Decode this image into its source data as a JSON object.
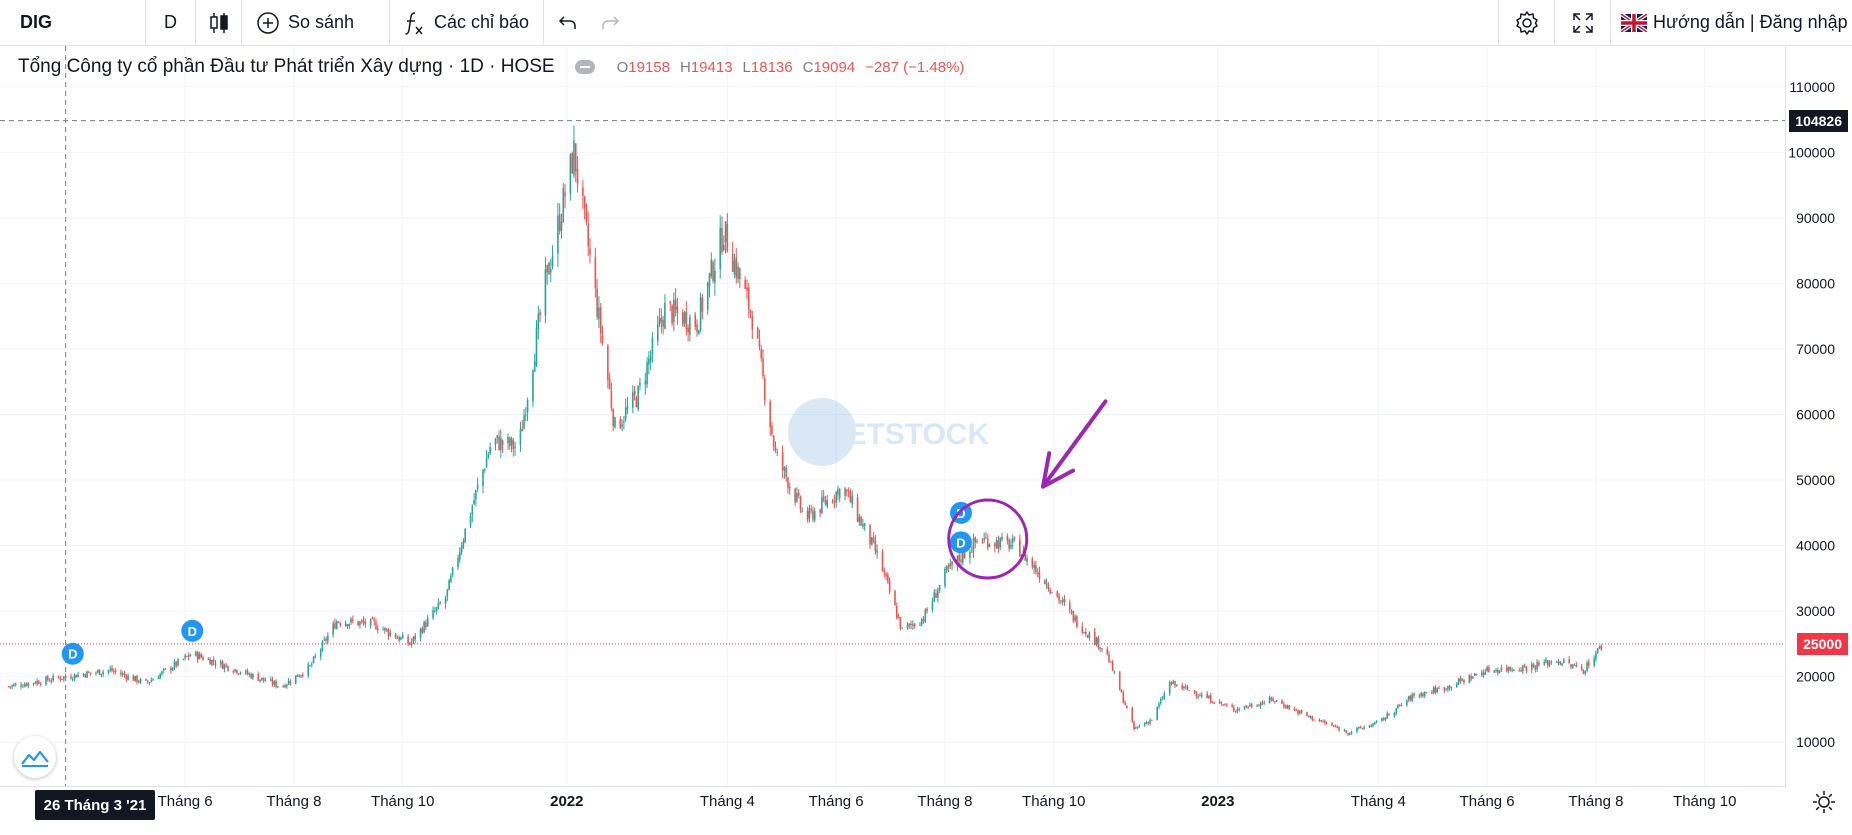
{
  "toolbar": {
    "symbol": "DIG",
    "interval": "D",
    "compare_label": "So sánh",
    "indicators_label": "Các chỉ báo",
    "guide_label": "Hướng dẫn | Đăng nhập"
  },
  "legend": {
    "title": "Tổng Công ty cổ phần Đầu tư Phát triển Xây dựng · 1D · HOSE",
    "o_label": "O",
    "o_value": "19158",
    "h_label": "H",
    "h_value": "19413",
    "l_label": "L",
    "l_value": "18136",
    "c_label": "C",
    "c_value": "19094",
    "change": "−287 (−1.48%)"
  },
  "watermark": {
    "text": "IETSTOCK"
  },
  "crosshair": {
    "price_label": "104826",
    "date_label": "26 Tháng 3 '21"
  },
  "last_price": {
    "label": "25000",
    "value": 25000,
    "color": "#f23645"
  },
  "colors": {
    "up": "#26a69a",
    "down": "#ef5350",
    "annotation": "#9c27b0",
    "dividend_badge": "#2196f3"
  },
  "chart_data": {
    "type": "candlestick",
    "y_axis": {
      "min": 5000,
      "max": 115000,
      "ticks": [
        10000,
        20000,
        30000,
        40000,
        50000,
        60000,
        70000,
        80000,
        90000,
        100000,
        110000
      ]
    },
    "x_axis": {
      "ticks": [
        {
          "label": "Tháng 6",
          "date": "2021-06"
        },
        {
          "label": "Tháng 8",
          "date": "2021-08"
        },
        {
          "label": "Tháng 10",
          "date": "2021-10"
        },
        {
          "label": "2022",
          "date": "2022-01",
          "bold": true
        },
        {
          "label": "Tháng 4",
          "date": "2022-04"
        },
        {
          "label": "Tháng 6",
          "date": "2022-06"
        },
        {
          "label": "Tháng 8",
          "date": "2022-08"
        },
        {
          "label": "Tháng 10",
          "date": "2022-10"
        },
        {
          "label": "2023",
          "date": "2023-01",
          "bold": true
        },
        {
          "label": "Tháng 4",
          "date": "2023-04"
        },
        {
          "label": "Tháng 6",
          "date": "2023-06"
        },
        {
          "label": "Tháng 8",
          "date": "2023-08"
        },
        {
          "label": "Tháng 10",
          "date": "2023-10"
        }
      ]
    },
    "price_path": [
      {
        "date": "2021-02-22",
        "close": 18500
      },
      {
        "date": "2021-03-26",
        "close": 20000
      },
      {
        "date": "2021-04-20",
        "close": 21000
      },
      {
        "date": "2021-05-10",
        "close": 19000
      },
      {
        "date": "2021-06-05",
        "close": 23500
      },
      {
        "date": "2021-07-05",
        "close": 20500
      },
      {
        "date": "2021-07-25",
        "close": 18500
      },
      {
        "date": "2021-08-10",
        "close": 21500
      },
      {
        "date": "2021-08-25",
        "close": 28500
      },
      {
        "date": "2021-09-15",
        "close": 28000
      },
      {
        "date": "2021-10-05",
        "close": 25000
      },
      {
        "date": "2021-10-25",
        "close": 32000
      },
      {
        "date": "2021-11-10",
        "close": 47000
      },
      {
        "date": "2021-11-20",
        "close": 56000
      },
      {
        "date": "2021-12-05",
        "close": 55000
      },
      {
        "date": "2021-12-20",
        "close": 80000
      },
      {
        "date": "2022-01-05",
        "close": 100000
      },
      {
        "date": "2022-01-15",
        "close": 82000
      },
      {
        "date": "2022-01-28",
        "close": 58000
      },
      {
        "date": "2022-02-10",
        "close": 63000
      },
      {
        "date": "2022-02-25",
        "close": 76000
      },
      {
        "date": "2022-03-15",
        "close": 74000
      },
      {
        "date": "2022-03-30",
        "close": 88000
      },
      {
        "date": "2022-04-15",
        "close": 75000
      },
      {
        "date": "2022-04-28",
        "close": 54000
      },
      {
        "date": "2022-05-15",
        "close": 44000
      },
      {
        "date": "2022-06-05",
        "close": 49000
      },
      {
        "date": "2022-06-25",
        "close": 38000
      },
      {
        "date": "2022-07-08",
        "close": 27000
      },
      {
        "date": "2022-07-20",
        "close": 29000
      },
      {
        "date": "2022-08-02",
        "close": 36000
      },
      {
        "date": "2022-08-20",
        "close": 41000
      },
      {
        "date": "2022-09-10",
        "close": 40000
      },
      {
        "date": "2022-09-28",
        "close": 34000
      },
      {
        "date": "2022-10-15",
        "close": 28000
      },
      {
        "date": "2022-10-30",
        "close": 24000
      },
      {
        "date": "2022-11-15",
        "close": 12000
      },
      {
        "date": "2022-11-25",
        "close": 13500
      },
      {
        "date": "2022-12-05",
        "close": 19000
      },
      {
        "date": "2022-12-20",
        "close": 17500
      },
      {
        "date": "2023-01-10",
        "close": 15000
      },
      {
        "date": "2023-02-01",
        "close": 16500
      },
      {
        "date": "2023-02-20",
        "close": 14000
      },
      {
        "date": "2023-03-15",
        "close": 11500
      },
      {
        "date": "2023-04-01",
        "close": 13000
      },
      {
        "date": "2023-04-20",
        "close": 17000
      },
      {
        "date": "2023-05-10",
        "close": 18500
      },
      {
        "date": "2023-06-01",
        "close": 21000
      },
      {
        "date": "2023-06-25",
        "close": 21500
      },
      {
        "date": "2023-07-10",
        "close": 22500
      },
      {
        "date": "2023-07-25",
        "close": 21000
      },
      {
        "date": "2023-08-05",
        "close": 25000
      }
    ],
    "dividend_markers": [
      {
        "date": "2021-03-30",
        "price": 23500,
        "label": "D"
      },
      {
        "date": "2021-06-05",
        "price": 27000,
        "label": "D"
      },
      {
        "date": "2022-08-10",
        "price": 45000,
        "label": "D"
      },
      {
        "date": "2022-08-10",
        "price": 40500,
        "label": "D"
      }
    ],
    "annotations": {
      "circle": {
        "center_date": "2022-08-25",
        "center_price": 41000
      },
      "arrow": {
        "from_date": "2022-10-30",
        "from_price": 62000,
        "to_date": "2022-09-25",
        "to_price": 49000
      }
    }
  }
}
